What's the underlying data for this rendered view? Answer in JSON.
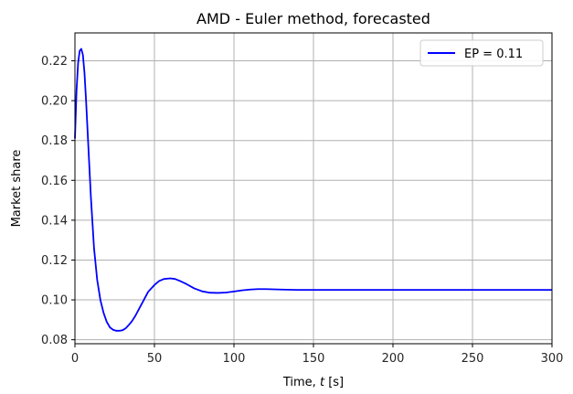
{
  "chart_data": {
    "type": "line",
    "title": "AMD - Euler method, forecasted",
    "xlabel": "Time, $t$ [s]",
    "xlabel_parts": {
      "prefix": "Time, ",
      "var": "t",
      "suffix": " [s]"
    },
    "ylabel": "Market share",
    "xlim": [
      0,
      300
    ],
    "ylim": [
      0.078,
      0.234
    ],
    "xticks": [
      0,
      50,
      100,
      150,
      200,
      250,
      300
    ],
    "xtick_labels": [
      "0",
      "50",
      "100",
      "150",
      "200",
      "250",
      "300"
    ],
    "yticks": [
      0.08,
      0.1,
      0.12,
      0.14,
      0.16,
      0.18,
      0.2,
      0.22
    ],
    "ytick_labels": [
      "0.08",
      "0.10",
      "0.12",
      "0.14",
      "0.16",
      "0.18",
      "0.20",
      "0.22"
    ],
    "grid": true,
    "legend_position": "top-right",
    "series": [
      {
        "name": "EP = 0.11",
        "color": "#0000ff",
        "x": [
          0,
          1,
          2,
          3,
          4,
          5,
          6,
          7,
          8,
          9,
          10,
          12,
          14,
          16,
          18,
          20,
          22,
          24,
          26,
          28,
          30,
          32,
          34,
          36,
          38,
          40,
          43,
          46,
          50,
          53,
          56,
          60,
          63,
          66,
          70,
          75,
          80,
          85,
          90,
          95,
          100,
          105,
          110,
          115,
          120,
          130,
          140,
          150,
          175,
          200,
          250,
          300
        ],
        "y": [
          0.181,
          0.205,
          0.219,
          0.225,
          0.226,
          0.223,
          0.214,
          0.2,
          0.184,
          0.168,
          0.152,
          0.126,
          0.11,
          0.1,
          0.0935,
          0.089,
          0.0862,
          0.085,
          0.0845,
          0.0845,
          0.0848,
          0.0858,
          0.0875,
          0.0895,
          0.092,
          0.095,
          0.0995,
          0.104,
          0.1075,
          0.1095,
          0.1105,
          0.1108,
          0.1105,
          0.1095,
          0.108,
          0.1058,
          0.1043,
          0.1036,
          0.1035,
          0.1037,
          0.1042,
          0.1048,
          0.1052,
          0.1054,
          0.1054,
          0.1052,
          0.105,
          0.105,
          0.105,
          0.105,
          0.105,
          0.105
        ]
      }
    ]
  }
}
